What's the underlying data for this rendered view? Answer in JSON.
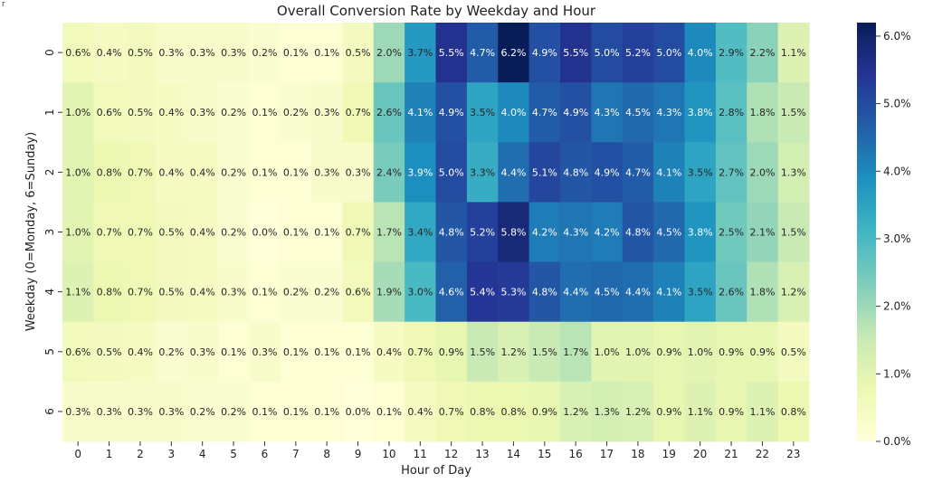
{
  "corner_mark": "r",
  "chart_data": {
    "type": "heatmap",
    "title": "Overall Conversion Rate by Weekday and Hour",
    "xlabel": "Hour of Day",
    "ylabel": "Weekday (0=Monday, 6=Sunday)",
    "x_categories": [
      "0",
      "1",
      "2",
      "3",
      "4",
      "5",
      "6",
      "7",
      "8",
      "9",
      "10",
      "11",
      "12",
      "13",
      "14",
      "15",
      "16",
      "17",
      "18",
      "19",
      "20",
      "21",
      "22",
      "23"
    ],
    "y_categories": [
      "0",
      "1",
      "2",
      "3",
      "4",
      "5",
      "6"
    ],
    "values": [
      [
        0.6,
        0.4,
        0.5,
        0.3,
        0.3,
        0.3,
        0.2,
        0.1,
        0.1,
        0.5,
        2.0,
        3.7,
        5.5,
        4.7,
        6.2,
        4.9,
        5.5,
        5.0,
        5.2,
        5.0,
        4.0,
        2.9,
        2.2,
        1.1
      ],
      [
        1.0,
        0.6,
        0.5,
        0.4,
        0.3,
        0.2,
        0.1,
        0.2,
        0.3,
        0.7,
        2.6,
        4.1,
        4.9,
        3.5,
        4.0,
        4.7,
        4.9,
        4.3,
        4.5,
        4.3,
        3.8,
        2.8,
        1.8,
        1.5
      ],
      [
        1.0,
        0.8,
        0.7,
        0.4,
        0.4,
        0.2,
        0.1,
        0.1,
        0.3,
        0.3,
        2.4,
        3.9,
        5.0,
        3.3,
        4.4,
        5.1,
        4.8,
        4.9,
        4.7,
        4.1,
        3.5,
        2.7,
        2.0,
        1.3
      ],
      [
        1.0,
        0.7,
        0.7,
        0.5,
        0.4,
        0.2,
        0.0,
        0.1,
        0.1,
        0.7,
        1.7,
        3.4,
        4.8,
        5.2,
        5.8,
        4.2,
        4.3,
        4.2,
        4.8,
        4.5,
        3.8,
        2.5,
        2.1,
        1.5
      ],
      [
        1.1,
        0.8,
        0.7,
        0.5,
        0.4,
        0.3,
        0.1,
        0.2,
        0.2,
        0.6,
        1.9,
        3.0,
        4.6,
        5.4,
        5.3,
        4.8,
        4.4,
        4.5,
        4.4,
        4.1,
        3.5,
        2.6,
        1.8,
        1.2
      ],
      [
        0.6,
        0.5,
        0.4,
        0.2,
        0.3,
        0.1,
        0.3,
        0.1,
        0.1,
        0.1,
        0.4,
        0.7,
        0.9,
        1.5,
        1.2,
        1.5,
        1.7,
        1.0,
        1.0,
        0.9,
        1.0,
        0.9,
        0.9,
        0.5
      ],
      [
        0.3,
        0.3,
        0.3,
        0.3,
        0.2,
        0.2,
        0.1,
        0.1,
        0.1,
        0.0,
        0.1,
        0.4,
        0.7,
        0.8,
        0.8,
        0.9,
        1.2,
        1.3,
        1.2,
        0.9,
        1.1,
        0.9,
        1.1,
        0.8
      ]
    ],
    "value_suffix": "%",
    "vmin": 0.0,
    "vmax": 6.2,
    "colormap": "YlGnBu",
    "colormap_stops": [
      "#ffffd9",
      "#edf8b1",
      "#c7e9b4",
      "#7fcdbb",
      "#41b6c4",
      "#1d91c0",
      "#225ea8",
      "#253494",
      "#081d58"
    ],
    "colorbar_ticks": [
      0,
      1,
      2,
      3,
      4,
      5,
      6
    ],
    "colorbar_tick_labels": [
      "0.0%",
      "1.0%",
      "2.0%",
      "3.0%",
      "4.0%",
      "5.0%",
      "6.0%"
    ],
    "annotation_dark_text_color": "#262626",
    "annotation_light_text_color": "#ffffff"
  }
}
